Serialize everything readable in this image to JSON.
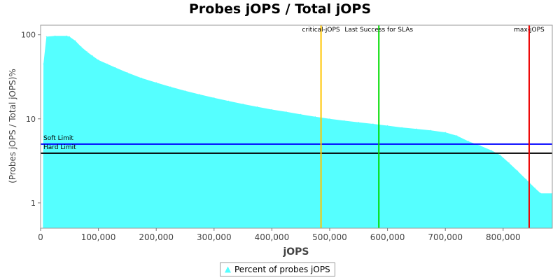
{
  "chart_data": {
    "type": "area",
    "title": "Probes jOPS / Total jOPS",
    "xlabel": "jOPS",
    "ylabel": "(Probes jOPS / Total jOPS)%",
    "y_scale": "log",
    "xlim": [
      0,
      885000
    ],
    "ylim": [
      0.5,
      130
    ],
    "x_ticks": [
      0,
      100000,
      200000,
      300000,
      400000,
      500000,
      600000,
      700000,
      800000
    ],
    "x_tick_labels": [
      "0",
      "100,000",
      "200,000",
      "300,000",
      "400,000",
      "500,000",
      "600,000",
      "700,000",
      "800,000"
    ],
    "y_ticks": [
      1,
      10,
      100
    ],
    "y_tick_labels": [
      "1",
      "10",
      "100"
    ],
    "series": [
      {
        "name": "Percent of probes jOPS",
        "color": "#55ffff",
        "points": [
          [
            4000,
            0.5
          ],
          [
            5000,
            45
          ],
          [
            10000,
            95
          ],
          [
            25000,
            97
          ],
          [
            45000,
            97
          ],
          [
            50000,
            95
          ],
          [
            60000,
            85
          ],
          [
            70000,
            72
          ],
          [
            80000,
            63
          ],
          [
            90000,
            56
          ],
          [
            100000,
            50
          ],
          [
            115000,
            45
          ],
          [
            130000,
            40.5
          ],
          [
            150000,
            35.5
          ],
          [
            175000,
            30.5
          ],
          [
            200000,
            27
          ],
          [
            225000,
            24
          ],
          [
            250000,
            21.5
          ],
          [
            275000,
            19.5
          ],
          [
            300000,
            17.8
          ],
          [
            325000,
            16.3
          ],
          [
            350000,
            15
          ],
          [
            375000,
            13.9
          ],
          [
            400000,
            12.9
          ],
          [
            425000,
            12.1
          ],
          [
            450000,
            11.3
          ],
          [
            475000,
            10.6
          ],
          [
            500000,
            10
          ],
          [
            525000,
            9.5
          ],
          [
            550000,
            9.1
          ],
          [
            575000,
            8.7
          ],
          [
            600000,
            8.3
          ],
          [
            625000,
            7.9
          ],
          [
            650000,
            7.6
          ],
          [
            675000,
            7.3
          ],
          [
            700000,
            6.9
          ],
          [
            720000,
            6.3
          ],
          [
            740000,
            5.4
          ],
          [
            760000,
            4.8
          ],
          [
            780000,
            4.2
          ],
          [
            795000,
            3.7
          ],
          [
            810000,
            3.0
          ],
          [
            825000,
            2.4
          ],
          [
            840000,
            1.9
          ],
          [
            855000,
            1.5
          ],
          [
            865000,
            1.3
          ],
          [
            885000,
            1.3
          ]
        ]
      }
    ],
    "vertical_markers": [
      {
        "label": "critical-jOPS",
        "x": 485000,
        "color": "#ffc400"
      },
      {
        "label": "Last Success for SLAs",
        "x": 585000,
        "color": "#00dd00"
      },
      {
        "label": "max-jOPS",
        "x": 845000,
        "color": "#ee0000"
      }
    ],
    "horizontal_limits": [
      {
        "label": "Soft Limit",
        "y": 5.0,
        "color": "#0000ff"
      },
      {
        "label": "Hard Limit",
        "y": 3.9,
        "color": "#000000"
      }
    ],
    "legend_position": "bottom-center",
    "grid": false
  }
}
